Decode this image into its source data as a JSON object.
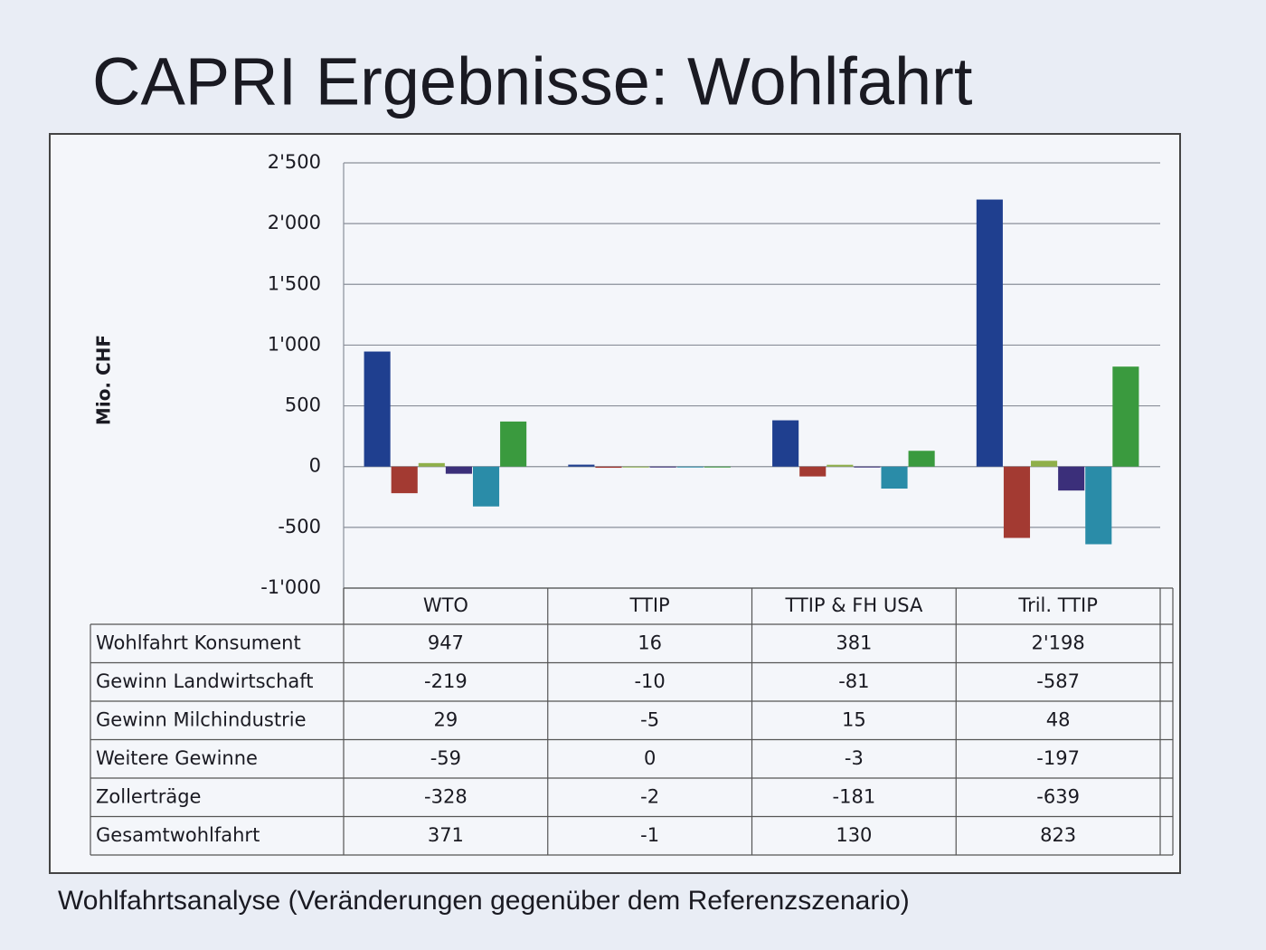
{
  "chart_data": {
    "type": "bar",
    "title": "CAPRI Ergebnisse: Wohlfahrt",
    "subtitle": "Wohlfahrtsanalyse (Veränderungen gegenüber dem Referenzszenario)",
    "y_label": "Mio. CHF",
    "categories": [
      "WTO",
      "TTIP",
      "TTIP & FH USA",
      "Tril. TTIP"
    ],
    "series": [
      {
        "name": "Wohlfahrt Konsument",
        "color": "#1f3f8f",
        "values": [
          947,
          16,
          381,
          2198
        ],
        "value_labels": [
          "947",
          "16",
          "381",
          "2'198"
        ]
      },
      {
        "name": "Gewinn Landwirtschaft",
        "color": "#a33a32",
        "values": [
          -219,
          -10,
          -81,
          -587
        ]
      },
      {
        "name": "Gewinn Milchindustrie",
        "color": "#8fb04a",
        "values": [
          29,
          -5,
          15,
          48
        ]
      },
      {
        "name": "Weitere Gewinne",
        "color": "#3b2f7a",
        "values": [
          -59,
          0,
          -3,
          -197
        ]
      },
      {
        "name": "Zollerträge",
        "color": "#2a8ca8",
        "values": [
          -328,
          -2,
          -181,
          -639
        ]
      },
      {
        "name": "Gesamtwohlfahrt",
        "color": "#3a9a3e",
        "values": [
          371,
          -1,
          130,
          823
        ]
      }
    ],
    "ylim": [
      -1000,
      2500
    ],
    "yticks": [
      {
        "value": -1000,
        "label": "-1'000"
      },
      -500,
      0,
      500,
      {
        "value": 1000,
        "label": "1'000"
      },
      {
        "value": 1500,
        "label": "1'500"
      },
      {
        "value": 2000,
        "label": "2'000"
      },
      {
        "value": 2500,
        "label": "2'500"
      }
    ],
    "grid": true
  }
}
